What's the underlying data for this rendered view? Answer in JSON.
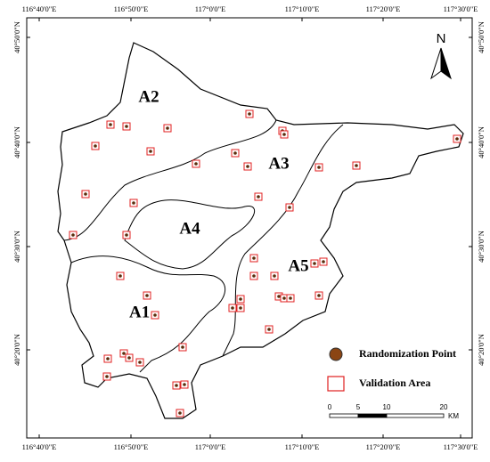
{
  "map": {
    "longitude_labels": [
      "116°40'0\"E",
      "116°50'0\"E",
      "117°0'0\"E",
      "117°10'0\"E",
      "117°20'0\"E",
      "117°30'0\"E"
    ],
    "latitude_labels": [
      "40°50'0\"N",
      "40°40'0\"N",
      "40°30'0\"N",
      "40°20'0\"N"
    ],
    "areas": [
      "A1",
      "A2",
      "A3",
      "A4",
      "A5"
    ],
    "north": "N",
    "legend": {
      "items": [
        "Randomization Point",
        "Validation Area"
      ]
    },
    "scale_bar": {
      "labels": [
        "0",
        "5",
        "10",
        "20"
      ],
      "unit": "KM"
    }
  }
}
